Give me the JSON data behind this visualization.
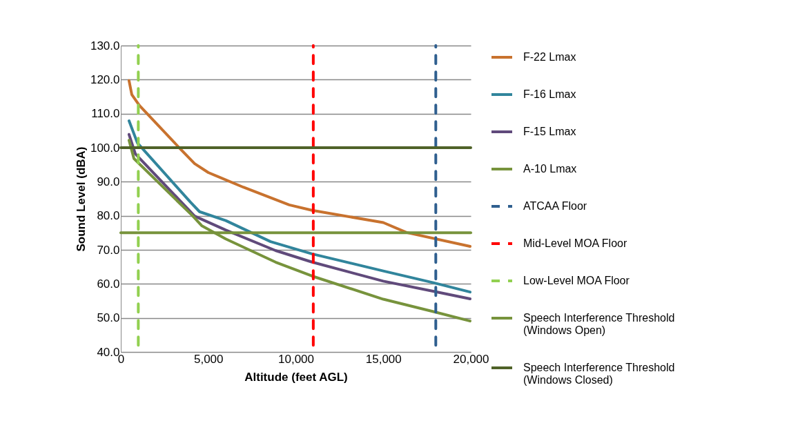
{
  "chart_data": {
    "type": "line",
    "xlabel": "Altitude (feet AGL)",
    "ylabel": "Sound Level (dBA)",
    "xlim": [
      0,
      20000
    ],
    "xticks": [
      0,
      {
        "value": 5000,
        "label": "5,000"
      },
      {
        "value": 10000,
        "label": "10,000"
      },
      {
        "value": 15000,
        "label": "15,000"
      },
      {
        "value": 20000,
        "label": "20,000"
      }
    ],
    "ylim": [
      40,
      130
    ],
    "yticks": [
      {
        "value": 40,
        "label": "40.0"
      },
      {
        "value": 50,
        "label": "50.0"
      },
      {
        "value": 60,
        "label": "60.0"
      },
      {
        "value": 70,
        "label": "70.0"
      },
      {
        "value": 80,
        "label": "80.0"
      },
      {
        "value": 90,
        "label": "90.0"
      },
      {
        "value": 100,
        "label": "100.0"
      },
      {
        "value": 110,
        "label": "110.0"
      },
      {
        "value": 120,
        "label": "120.0"
      },
      {
        "value": 130,
        "label": "130.0"
      }
    ],
    "grid": "y",
    "legend": "right",
    "marker": "none",
    "series": [
      {
        "name": "F-22 Lmax",
        "color": "#c8722e",
        "line_style": "solid",
        "x": [
          470,
          630,
          1065,
          3300,
          4220,
          5000,
          7000,
          9625,
          10930,
          15000,
          16330,
          19960
        ],
        "values": [
          119.7,
          115.6,
          112.4,
          100.2,
          95.3,
          92.7,
          88.4,
          83.2,
          81.6,
          78.0,
          75.1,
          71.0
        ]
      },
      {
        "name": "F-16 Lmax",
        "color": "#31859c",
        "line_style": "solid",
        "x": [
          470,
          950,
          3980,
          4500,
          6000,
          8560,
          10930,
          15000,
          17900,
          19960
        ],
        "values": [
          107.9,
          101.4,
          84.0,
          81.2,
          78.6,
          72.4,
          68.8,
          63.8,
          60.3,
          57.6
        ]
      },
      {
        "name": "F-15 Lmax",
        "color": "#604a7b",
        "line_style": "solid",
        "x": [
          470,
          830,
          4220,
          6000,
          8840,
          10930,
          15000,
          17900,
          19960
        ],
        "values": [
          103.9,
          98.2,
          79.9,
          75.8,
          69.8,
          66.4,
          60.8,
          57.8,
          55.6
        ]
      },
      {
        "name": "A-10 Lmax",
        "color": "#77933c",
        "line_style": "solid",
        "x": [
          470,
          750,
          4100,
          4620,
          6000,
          8840,
          10930,
          15000,
          17900,
          19960
        ],
        "values": [
          102.2,
          96.8,
          80.0,
          77.1,
          73.2,
          66.4,
          62.3,
          55.5,
          51.8,
          49.1
        ]
      },
      {
        "name": "ATCAA Floor",
        "color": "#2f5f8f",
        "line_style": "dashed",
        "x": [
          18000,
          18000
        ],
        "values": [
          42,
          130
        ]
      },
      {
        "name": "Mid-Level MOA Floor",
        "color": "#ff0000",
        "line_style": "dashed",
        "x": [
          11000,
          11000
        ],
        "values": [
          42,
          130
        ]
      },
      {
        "name": "Low-Level MOA Floor",
        "color": "#92d050",
        "line_style": "dashed",
        "x": [
          1000,
          1000
        ],
        "values": [
          42,
          130
        ]
      },
      {
        "name": "Speech Interference Threshold (Windows Open)",
        "color": "#77933c",
        "line_style": "solid",
        "x": [
          0,
          20000
        ],
        "values": [
          75,
          75
        ]
      },
      {
        "name": "Speech Interference Threshold (Windows Closed)",
        "color": "#4f6228",
        "line_style": "solid",
        "x": [
          0,
          20000
        ],
        "values": [
          100,
          100
        ]
      }
    ]
  }
}
